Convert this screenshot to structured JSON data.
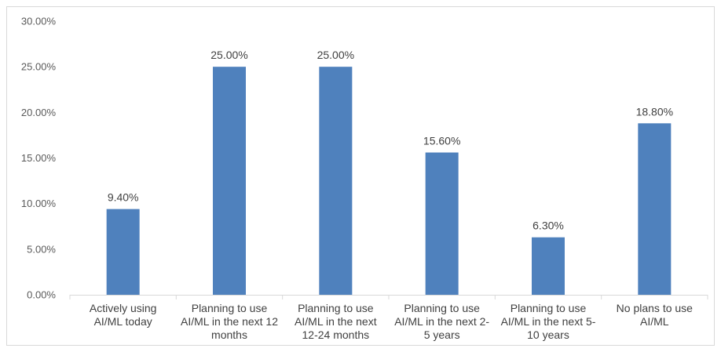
{
  "chart_data": {
    "type": "bar",
    "categories": [
      [
        "Actively using",
        "AI/ML today"
      ],
      [
        "Planning to use",
        "AI/ML in the next 12",
        "months"
      ],
      [
        "Planning to use",
        "AI/ML in the next",
        "12-24 months"
      ],
      [
        "Planning to use",
        "AI/ML in the next 2-",
        "5 years"
      ],
      [
        "Planning to use",
        "AI/ML in the next 5-",
        "10 years"
      ],
      [
        "No plans to use",
        "AI/ML"
      ]
    ],
    "values": [
      9.4,
      25.0,
      25.0,
      15.6,
      6.3,
      18.8
    ],
    "data_labels": [
      "9.40%",
      "25.00%",
      "25.00%",
      "15.60%",
      "6.30%",
      "18.80%"
    ],
    "yticks": [
      0,
      5,
      10,
      15,
      20,
      25,
      30
    ],
    "ytick_labels": [
      "0.00%",
      "5.00%",
      "10.00%",
      "15.00%",
      "20.00%",
      "25.00%",
      "30.00%"
    ],
    "ylim": [
      0,
      30
    ],
    "grid": false,
    "legend": "none",
    "bar_color": "#4f81bd",
    "axis_color": "#d9d9d9"
  }
}
